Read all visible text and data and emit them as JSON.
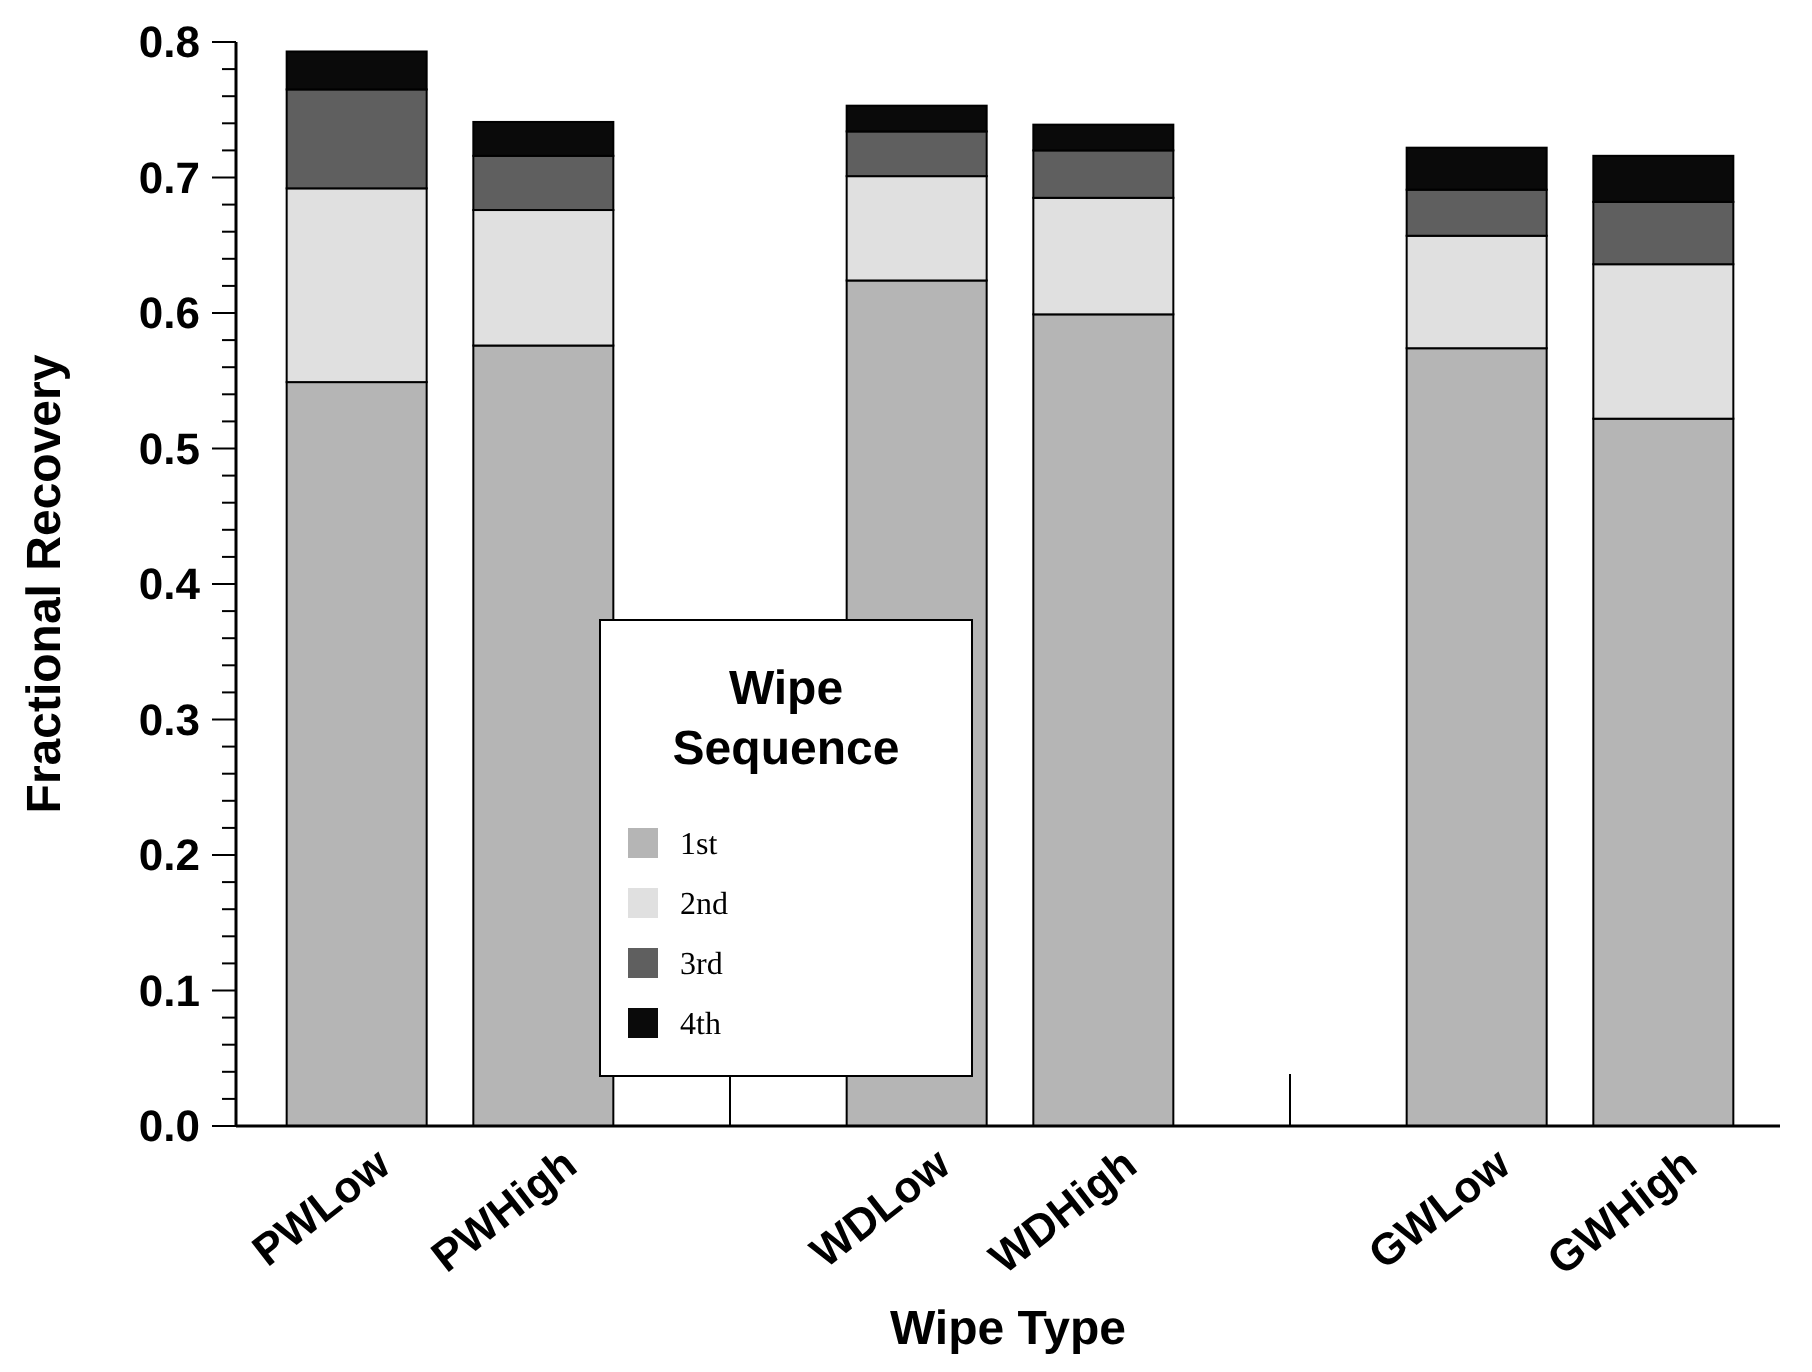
{
  "chart_data": {
    "type": "bar",
    "stacked": true,
    "xlabel": "Wipe Type",
    "ylabel": "Fractional Recovery",
    "legend_title": "Wipe Sequence",
    "legend": "bottom",
    "categories": [
      "PWLow",
      "PWHigh",
      null,
      "WDLow",
      "WDHigh",
      null,
      "GWLow",
      "GWHigh"
    ],
    "series": [
      {
        "name": "1st",
        "color": "#b5b5b5",
        "values": [
          0.549,
          0.576,
          null,
          0.624,
          0.599,
          null,
          0.574,
          0.522
        ]
      },
      {
        "name": "2nd",
        "color": "#e0e0e0",
        "values": [
          0.143,
          0.1,
          null,
          0.077,
          0.086,
          null,
          0.083,
          0.114
        ]
      },
      {
        "name": "3rd",
        "color": "#5f5f5f",
        "values": [
          0.073,
          0.04,
          null,
          0.033,
          0.035,
          null,
          0.034,
          0.046
        ]
      },
      {
        "name": "4th",
        "color": "#0a0a0a",
        "values": [
          0.028,
          0.025,
          null,
          0.019,
          0.019,
          null,
          0.031,
          0.034
        ]
      }
    ],
    "ylim": [
      0,
      0.8
    ],
    "yticks": [
      {
        "value": 0,
        "label": "0.0"
      },
      {
        "value": 0.02,
        "label": null
      },
      {
        "value": 0.04,
        "label": null
      },
      {
        "value": 0.06,
        "label": null
      },
      {
        "value": 0.08,
        "label": null
      },
      {
        "value": 0.1,
        "label": "0.1"
      },
      {
        "value": 0.12,
        "label": null
      },
      {
        "value": 0.14,
        "label": null
      },
      {
        "value": 0.16,
        "label": null
      },
      {
        "value": 0.18,
        "label": null
      },
      {
        "value": 0.2,
        "label": "0.2"
      },
      {
        "value": 0.22,
        "label": null
      },
      {
        "value": 0.24,
        "label": null
      },
      {
        "value": 0.26,
        "label": null
      },
      {
        "value": 0.28,
        "label": null
      },
      {
        "value": 0.3,
        "label": "0.3"
      },
      {
        "value": 0.32,
        "label": null
      },
      {
        "value": 0.34,
        "label": null
      },
      {
        "value": 0.36,
        "label": null
      },
      {
        "value": 0.38,
        "label": null
      },
      {
        "value": 0.4,
        "label": "0.4"
      },
      {
        "value": 0.42,
        "label": null
      },
      {
        "value": 0.44,
        "label": null
      },
      {
        "value": 0.46,
        "label": null
      },
      {
        "value": 0.48,
        "label": null
      },
      {
        "value": 0.5,
        "label": "0.5"
      },
      {
        "value": 0.52,
        "label": null
      },
      {
        "value": 0.54,
        "label": null
      },
      {
        "value": 0.56,
        "label": null
      },
      {
        "value": 0.58,
        "label": null
      },
      {
        "value": 0.6,
        "label": "0.6"
      },
      {
        "value": 0.62,
        "label": null
      },
      {
        "value": 0.64,
        "label": null
      },
      {
        "value": 0.66,
        "label": null
      },
      {
        "value": 0.68,
        "label": null
      },
      {
        "value": 0.7,
        "label": "0.7"
      },
      {
        "value": 0.72,
        "label": null
      },
      {
        "value": 0.74,
        "label": null
      },
      {
        "value": 0.76,
        "label": null
      },
      {
        "value": 0.78,
        "label": null
      },
      {
        "value": 0.8,
        "label": "0.8"
      }
    ]
  }
}
